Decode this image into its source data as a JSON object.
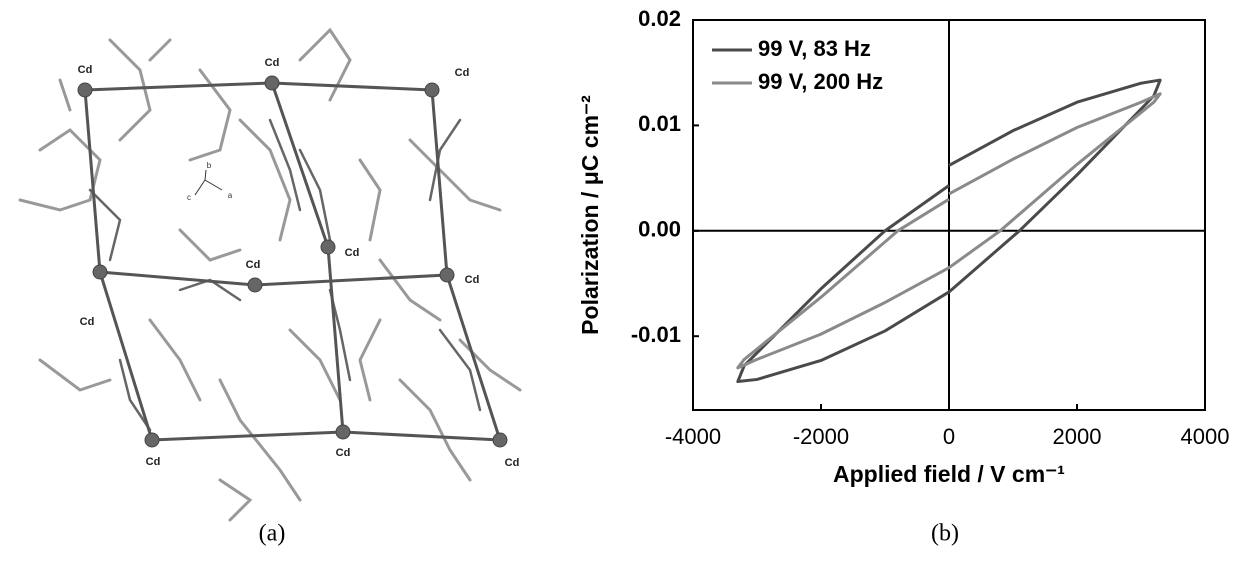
{
  "structure": {
    "atom_labels": [
      "Cd",
      "Cd",
      "Cd",
      "Cd",
      "Cd",
      "Cd",
      "Cd",
      "Cd",
      "Cd",
      "Cd"
    ],
    "axis_labels": [
      "b",
      "c",
      "a"
    ],
    "caption": "(a)"
  },
  "chart_data": {
    "type": "line",
    "caption": "(b)",
    "x_label": "Applied field / V cm⁻¹",
    "y_label": "Polarization / μC cm⁻²",
    "xlim": [
      -4000,
      4000
    ],
    "xticks": [
      -4000,
      -2000,
      0,
      2000,
      4000
    ],
    "ylim": [
      -0.017,
      0.02
    ],
    "yticks": [
      -0.01,
      {
        "value": 0,
        "label": "0.00"
      },
      0.01,
      0.02
    ],
    "legend": "upper left",
    "series": [
      {
        "name": "99 V, 83 Hz",
        "color": "#4a4a4a",
        "x": [
          0,
          1000,
          2000,
          3000,
          3300,
          3200,
          2000,
          1100,
          0,
          -1000,
          -2000,
          -3000,
          -3300,
          -3200,
          -2000,
          -1000,
          0
        ],
        "values": [
          0.0062,
          0.0095,
          0.0122,
          0.014,
          0.0143,
          0.0128,
          0.0053,
          0,
          -0.0058,
          -0.0095,
          -0.0123,
          -0.0141,
          -0.0143,
          -0.0128,
          -0.0055,
          0,
          0.0043
        ]
      },
      {
        "name": "99 V, 200 Hz",
        "color": "#8a8a8a",
        "x": [
          0,
          1000,
          2000,
          3000,
          3300,
          3200,
          2000,
          800,
          0,
          -1000,
          -2000,
          -3000,
          -3300,
          -3200,
          -2000,
          -800,
          0
        ],
        "values": [
          0.0035,
          0.0068,
          0.0098,
          0.0122,
          0.013,
          0.0122,
          0.0063,
          0,
          -0.0035,
          -0.0068,
          -0.0098,
          -0.0122,
          -0.013,
          -0.0122,
          -0.0063,
          0,
          0.003
        ]
      }
    ]
  }
}
